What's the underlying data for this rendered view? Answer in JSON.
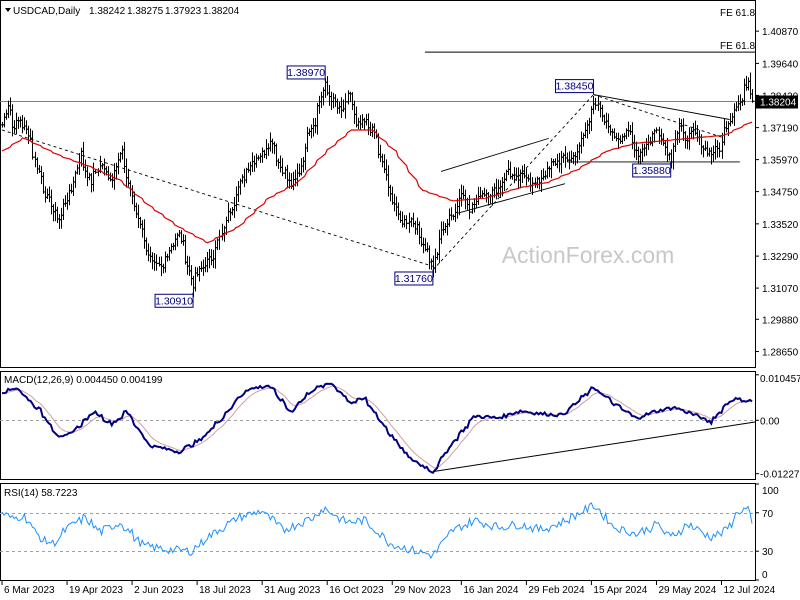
{
  "chart_data": {
    "type": "ohlc",
    "title": "USDCAD,Daily",
    "ohlc_header": [
      "1.38242",
      "1.38275",
      "1.37923",
      "1.38204"
    ],
    "watermark": "ActionForex.com",
    "last_price": "1.38204",
    "x_tick_labels": [
      "6 Mar 2023",
      "19 Apr 2023",
      "2 Jun 2023",
      "18 Jul 2023",
      "31 Aug 2023",
      "16 Oct 2023",
      "29 Nov 2023",
      "16 Jan 2024",
      "29 Feb 2024",
      "15 Apr 2024",
      "29 May 2024",
      "12 Jul 2024"
    ],
    "price_panel": {
      "ylim": [
        1.2806,
        1.4202
      ],
      "y_tick_labels": [
        "1.40870",
        "1.39640",
        "1.38420",
        "1.37190",
        "1.35970",
        "1.34750",
        "1.33520",
        "1.32290",
        "1.31070",
        "1.29880",
        "1.28650"
      ],
      "y_tick_values": [
        1.4087,
        1.3964,
        1.3842,
        1.3719,
        1.3597,
        1.3475,
        1.3352,
        1.3229,
        1.3107,
        1.2988,
        1.2865
      ],
      "fib_label_top": "FE 61.8",
      "fib_extension": {
        "label": "FE 61.8",
        "value": 1.4007
      },
      "annotations": [
        {
          "label": "1.38970",
          "value": 1.3897,
          "date": "2023-10-13"
        },
        {
          "label": "1.30910",
          "value": 1.3091,
          "date": "2023-07-14"
        },
        {
          "label": "1.31760",
          "value": 1.3176,
          "date": "2023-12-27"
        },
        {
          "label": "1.38450",
          "value": 1.3845,
          "date": "2024-04-16"
        },
        {
          "label": "1.35880",
          "value": 1.3588,
          "date": "2024-06-07"
        }
      ],
      "close_anchors": [
        [
          "2023-03-06",
          1.373
        ],
        [
          "2023-03-09",
          1.381
        ],
        [
          "2023-03-13",
          1.372
        ],
        [
          "2023-03-17",
          1.375
        ],
        [
          "2023-03-23",
          1.37
        ],
        [
          "2023-03-30",
          1.355
        ],
        [
          "2023-04-05",
          1.345
        ],
        [
          "2023-04-13",
          1.337
        ],
        [
          "2023-04-19",
          1.345
        ],
        [
          "2023-04-24",
          1.352
        ],
        [
          "2023-04-28",
          1.362
        ],
        [
          "2023-05-05",
          1.351
        ],
        [
          "2023-05-12",
          1.358
        ],
        [
          "2023-05-19",
          1.352
        ],
        [
          "2023-05-26",
          1.363
        ],
        [
          "2023-06-02",
          1.346
        ],
        [
          "2023-06-09",
          1.334
        ],
        [
          "2023-06-16",
          1.32
        ],
        [
          "2023-06-23",
          1.318
        ],
        [
          "2023-06-29",
          1.327
        ],
        [
          "2023-07-05",
          1.331
        ],
        [
          "2023-07-10",
          1.322
        ],
        [
          "2023-07-14",
          1.312
        ],
        [
          "2023-07-20",
          1.318
        ],
        [
          "2023-07-27",
          1.322
        ],
        [
          "2023-08-03",
          1.331
        ],
        [
          "2023-08-10",
          1.342
        ],
        [
          "2023-08-17",
          1.352
        ],
        [
          "2023-08-24",
          1.359
        ],
        [
          "2023-08-31",
          1.362
        ],
        [
          "2023-09-07",
          1.367
        ],
        [
          "2023-09-13",
          1.357
        ],
        [
          "2023-09-20",
          1.35
        ],
        [
          "2023-09-26",
          1.355
        ],
        [
          "2023-10-02",
          1.371
        ],
        [
          "2023-10-06",
          1.374
        ],
        [
          "2023-10-13",
          1.388
        ],
        [
          "2023-10-19",
          1.382
        ],
        [
          "2023-10-25",
          1.378
        ],
        [
          "2023-10-31",
          1.385
        ],
        [
          "2023-11-03",
          1.372
        ],
        [
          "2023-11-10",
          1.374
        ],
        [
          "2023-11-16",
          1.37
        ],
        [
          "2023-11-21",
          1.36
        ],
        [
          "2023-11-28",
          1.346
        ],
        [
          "2023-12-05",
          1.336
        ],
        [
          "2023-12-12",
          1.337
        ],
        [
          "2023-12-18",
          1.33
        ],
        [
          "2023-12-27",
          1.319
        ],
        [
          "2024-01-03",
          1.334
        ],
        [
          "2024-01-09",
          1.338
        ],
        [
          "2024-01-16",
          1.347
        ],
        [
          "2024-01-22",
          1.341
        ],
        [
          "2024-01-29",
          1.347
        ],
        [
          "2024-02-05",
          1.347
        ],
        [
          "2024-02-12",
          1.35
        ],
        [
          "2024-02-16",
          1.356
        ],
        [
          "2024-02-22",
          1.352
        ],
        [
          "2024-02-29",
          1.354
        ],
        [
          "2024-03-05",
          1.35
        ],
        [
          "2024-03-11",
          1.353
        ],
        [
          "2024-03-18",
          1.358
        ],
        [
          "2024-03-25",
          1.36
        ],
        [
          "2024-04-01",
          1.36
        ],
        [
          "2024-04-08",
          1.367
        ],
        [
          "2024-04-16",
          1.382
        ],
        [
          "2024-04-22",
          1.375
        ],
        [
          "2024-04-29",
          1.369
        ],
        [
          "2024-05-03",
          1.368
        ],
        [
          "2024-05-10",
          1.37
        ],
        [
          "2024-05-16",
          1.362
        ],
        [
          "2024-05-23",
          1.366
        ],
        [
          "2024-05-29",
          1.371
        ],
        [
          "2024-06-03",
          1.366
        ],
        [
          "2024-06-07",
          1.36
        ],
        [
          "2024-06-13",
          1.372
        ],
        [
          "2024-06-18",
          1.368
        ],
        [
          "2024-06-24",
          1.37
        ],
        [
          "2024-06-28",
          1.366
        ],
        [
          "2024-07-05",
          1.362
        ],
        [
          "2024-07-11",
          1.364
        ],
        [
          "2024-07-16",
          1.373
        ],
        [
          "2024-07-22",
          1.38
        ],
        [
          "2024-07-26",
          1.382
        ],
        [
          "2024-07-31",
          1.39
        ],
        [
          "2024-08-02",
          1.382
        ]
      ],
      "moving_average_anchors": [
        [
          "2023-03-06",
          1.363
        ],
        [
          "2023-03-20",
          1.368
        ],
        [
          "2023-04-15",
          1.361
        ],
        [
          "2023-05-05",
          1.357
        ],
        [
          "2023-05-25",
          1.352
        ],
        [
          "2023-06-15",
          1.342
        ],
        [
          "2023-07-05",
          1.334
        ],
        [
          "2023-07-25",
          1.328
        ],
        [
          "2023-08-15",
          1.334
        ],
        [
          "2023-09-05",
          1.345
        ],
        [
          "2023-09-25",
          1.351
        ],
        [
          "2023-10-15",
          1.363
        ],
        [
          "2023-11-01",
          1.371
        ],
        [
          "2023-11-15",
          1.371
        ],
        [
          "2023-12-01",
          1.363
        ],
        [
          "2023-12-20",
          1.348
        ],
        [
          "2024-01-10",
          1.344
        ],
        [
          "2024-02-01",
          1.345
        ],
        [
          "2024-02-25",
          1.349
        ],
        [
          "2024-03-15",
          1.351
        ],
        [
          "2024-04-05",
          1.356
        ],
        [
          "2024-04-25",
          1.363
        ],
        [
          "2024-05-15",
          1.366
        ],
        [
          "2024-06-05",
          1.367
        ],
        [
          "2024-06-25",
          1.368
        ],
        [
          "2024-07-15",
          1.369
        ],
        [
          "2024-08-02",
          1.374
        ]
      ],
      "trendlines": [
        {
          "style": "dashed",
          "from": [
            "2023-03-06",
            1.371
          ],
          "to": [
            "2023-12-27",
            1.319
          ]
        },
        {
          "style": "dashed",
          "from": [
            "2023-12-27",
            1.3176
          ],
          "to": [
            "2024-04-16",
            1.3845
          ]
        },
        {
          "style": "dashed",
          "from": [
            "2024-04-16",
            1.3845
          ],
          "to": [
            "2024-07-15",
            1.368
          ]
        },
        {
          "style": "solid",
          "from": [
            "2024-04-16",
            1.3845
          ],
          "to": [
            "2024-07-18",
            1.375
          ]
        },
        {
          "style": "solid",
          "from": [
            "2024-01-02",
            1.3552
          ],
          "to": [
            "2024-03-15",
            1.3678
          ]
        },
        {
          "style": "solid",
          "from": [
            "2024-01-12",
            1.3392
          ],
          "to": [
            "2024-03-27",
            1.3505
          ]
        },
        {
          "style": "solid",
          "from": [
            "2024-03-28",
            1.3588
          ],
          "to": [
            "2024-07-25",
            1.3588
          ]
        }
      ]
    },
    "macd_panel": {
      "label": "MACD(12,26,9) 0.004450 0.004199",
      "ylim": [
        -0.0135,
        0.0111
      ],
      "y_tick_labels": [
        "0.010457",
        "0.00",
        "-0.012276"
      ],
      "y_tick_values": [
        0.010457,
        0.0,
        -0.012276
      ],
      "zero_line": true,
      "macd_anchors": [
        [
          "2023-03-06",
          0.0065
        ],
        [
          "2023-03-15",
          0.0075
        ],
        [
          "2023-04-01",
          0.002
        ],
        [
          "2023-04-15",
          -0.0045
        ],
        [
          "2023-04-25",
          -0.002
        ],
        [
          "2023-05-08",
          0.002
        ],
        [
          "2023-05-20",
          -0.001
        ],
        [
          "2023-05-30",
          0.002
        ],
        [
          "2023-06-15",
          -0.0058
        ],
        [
          "2023-07-05",
          -0.0072
        ],
        [
          "2023-07-20",
          -0.0045
        ],
        [
          "2023-08-05",
          0.001
        ],
        [
          "2023-08-20",
          0.007
        ],
        [
          "2023-09-05",
          0.008
        ],
        [
          "2023-09-20",
          0.002
        ],
        [
          "2023-10-05",
          0.007
        ],
        [
          "2023-10-18",
          0.0085
        ],
        [
          "2023-11-01",
          0.004
        ],
        [
          "2023-11-10",
          0.005
        ],
        [
          "2023-11-25",
          -0.002
        ],
        [
          "2023-12-10",
          -0.0085
        ],
        [
          "2023-12-27",
          -0.0118
        ],
        [
          "2024-01-10",
          -0.005
        ],
        [
          "2024-01-25",
          0.001
        ],
        [
          "2024-02-10",
          0.0005
        ],
        [
          "2024-02-25",
          0.0022
        ],
        [
          "2024-03-10",
          0.0015
        ],
        [
          "2024-03-25",
          0.0012
        ],
        [
          "2024-04-16",
          0.0075
        ],
        [
          "2024-05-01",
          0.0035
        ],
        [
          "2024-05-15",
          0.0005
        ],
        [
          "2024-05-28",
          0.002
        ],
        [
          "2024-06-10",
          0.003
        ],
        [
          "2024-06-25",
          0.0012
        ],
        [
          "2024-07-05",
          -0.0005
        ],
        [
          "2024-07-20",
          0.005
        ],
        [
          "2024-07-30",
          0.0045
        ],
        [
          "2024-08-02",
          0.00445
        ]
      ],
      "trendline": {
        "from": [
          "2023-12-27",
          -0.0118
        ],
        "to": [
          "2024-08-02",
          -0.0004
        ]
      }
    },
    "rsi_panel": {
      "label": "RSI(14) 58.7223",
      "ylim": [
        0,
        100
      ],
      "y_tick_labels": [
        "100",
        "70",
        "30",
        "0"
      ],
      "y_tick_values": [
        100,
        70,
        30,
        0
      ],
      "levels": [
        70,
        30
      ],
      "rsi_anchors": [
        [
          "2023-03-06",
          70
        ],
        [
          "2023-03-12",
          63
        ],
        [
          "2023-03-20",
          68
        ],
        [
          "2023-04-01",
          42
        ],
        [
          "2023-04-10",
          38
        ],
        [
          "2023-04-20",
          55
        ],
        [
          "2023-05-01",
          65
        ],
        [
          "2023-05-12",
          50
        ],
        [
          "2023-05-26",
          60
        ],
        [
          "2023-06-10",
          36
        ],
        [
          "2023-06-25",
          32
        ],
        [
          "2023-07-14",
          30
        ],
        [
          "2023-07-25",
          45
        ],
        [
          "2023-08-15",
          65
        ],
        [
          "2023-08-31",
          72
        ],
        [
          "2023-09-15",
          52
        ],
        [
          "2023-10-05",
          65
        ],
        [
          "2023-10-13",
          75
        ],
        [
          "2023-10-28",
          60
        ],
        [
          "2023-11-10",
          62
        ],
        [
          "2023-11-28",
          38
        ],
        [
          "2023-12-15",
          30
        ],
        [
          "2023-12-27",
          26
        ],
        [
          "2024-01-10",
          52
        ],
        [
          "2024-01-25",
          62
        ],
        [
          "2024-02-10",
          55
        ],
        [
          "2024-02-25",
          58
        ],
        [
          "2024-03-10",
          52
        ],
        [
          "2024-03-25",
          60
        ],
        [
          "2024-04-16",
          78
        ],
        [
          "2024-04-30",
          55
        ],
        [
          "2024-05-15",
          48
        ],
        [
          "2024-05-30",
          58
        ],
        [
          "2024-06-07",
          44
        ],
        [
          "2024-06-20",
          58
        ],
        [
          "2024-07-05",
          45
        ],
        [
          "2024-07-15",
          50
        ],
        [
          "2024-07-25",
          72
        ],
        [
          "2024-07-31",
          74
        ],
        [
          "2024-08-02",
          58.7
        ]
      ]
    },
    "colors": {
      "price_bars": "#000000",
      "moving_average": "#dc0000",
      "macd_line": "#000080",
      "signal_line": "#d0a0a0",
      "rsi_line": "#1e90ff",
      "label_text": "#000080",
      "last_price_bg": "#000000",
      "watermark": "#c8c8c8"
    }
  }
}
